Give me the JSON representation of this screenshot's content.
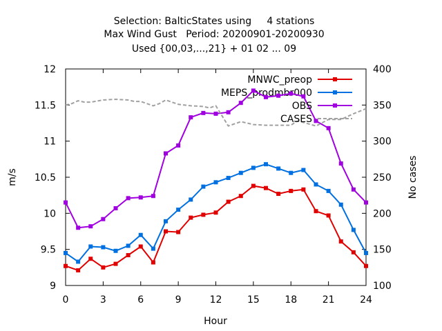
{
  "chart_data": {
    "type": "line",
    "title_lines": [
      "Selection: BalticStates using     4 stations",
      "Max Wind Gust   Period: 20200901-20200930",
      "Used {00,03,...,21} + 01 02 ... 09"
    ],
    "xlabel": "Hour",
    "ylabel": "m/s",
    "y2label": "No cases",
    "xlim": [
      0,
      24
    ],
    "ylim": [
      9,
      12
    ],
    "y2lim": [
      100,
      400
    ],
    "xticks": [
      "0",
      "3",
      "6",
      "9",
      "12",
      "15",
      "18",
      "21",
      "24"
    ],
    "yticks": [
      "9",
      "9.5",
      "10",
      "10.5",
      "11",
      "11.5",
      "12"
    ],
    "y2ticks": [
      "100",
      "150",
      "200",
      "250",
      "300",
      "350",
      "400"
    ],
    "legend_position": "top-right",
    "x": [
      0,
      1,
      2,
      3,
      4,
      5,
      6,
      7,
      8,
      9,
      10,
      11,
      12,
      13,
      14,
      15,
      16,
      17,
      18,
      19,
      20,
      21,
      22,
      23,
      24
    ],
    "series": [
      {
        "name": "MNWC_preop",
        "color": "#e00000",
        "axis": "y",
        "values": [
          9.27,
          9.21,
          9.37,
          9.25,
          9.3,
          9.42,
          9.54,
          9.32,
          9.75,
          9.74,
          9.94,
          9.98,
          10.01,
          10.16,
          10.24,
          10.38,
          10.35,
          10.27,
          10.31,
          10.33,
          10.03,
          9.97,
          9.61,
          9.46,
          9.27
        ]
      },
      {
        "name": "MEPS_prodmbr000",
        "color": "#0070e0",
        "axis": "y",
        "values": [
          9.45,
          9.33,
          9.54,
          9.53,
          9.48,
          9.55,
          9.7,
          9.51,
          9.89,
          10.05,
          10.19,
          10.37,
          10.43,
          10.49,
          10.56,
          10.63,
          10.68,
          10.62,
          10.56,
          10.6,
          10.4,
          10.31,
          10.12,
          9.77,
          9.45
        ]
      },
      {
        "name": "OBS",
        "color": "#a000e0",
        "axis": "y",
        "values": [
          10.15,
          9.8,
          9.82,
          9.92,
          10.07,
          10.21,
          10.22,
          10.24,
          10.83,
          10.94,
          11.33,
          11.39,
          11.38,
          11.4,
          11.53,
          11.7,
          11.61,
          11.63,
          11.66,
          11.62,
          11.28,
          11.18,
          10.69,
          10.33,
          10.15
        ]
      },
      {
        "name": "CASES",
        "color": "#a0a0a0",
        "axis": "y2",
        "dashed": true,
        "x": [
          0,
          0.5,
          1,
          1.5,
          2,
          3,
          4,
          5,
          5.5,
          6,
          7,
          7.5,
          8,
          9,
          10,
          11,
          11.5,
          12,
          13,
          14,
          15,
          16,
          17,
          18,
          18.5,
          19,
          20,
          21,
          21.5,
          22,
          23,
          24
        ],
        "values": [
          350,
          352,
          356,
          354,
          354,
          357,
          358,
          357,
          355,
          355,
          349,
          352,
          357,
          351,
          349,
          348,
          346,
          349,
          321,
          327,
          323,
          322,
          322,
          322,
          328,
          326,
          321,
          330,
          330,
          330,
          338,
          345
        ]
      }
    ]
  }
}
